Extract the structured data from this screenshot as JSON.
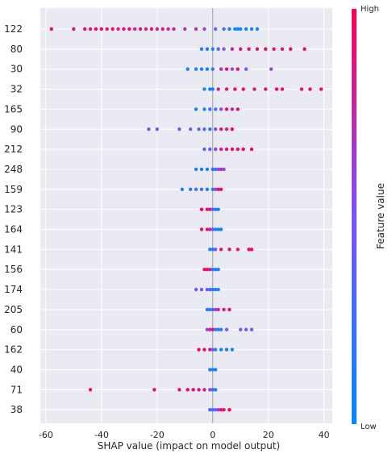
{
  "chart_data": {
    "type": "scatter",
    "subtype": "shap-beeswarm",
    "title": "",
    "xlabel": "SHAP value (impact on model output)",
    "xlim": [
      -62,
      43
    ],
    "xticks": [
      -60,
      -40,
      -20,
      0,
      20,
      40
    ],
    "grid": true,
    "colorbar": {
      "title": "Feature value",
      "high_label": "High",
      "low_label": "Low",
      "low_color": "#008afb",
      "mid_color": "#7c52ff",
      "high_color": "#ff0052"
    },
    "features": [
      {
        "name": "122",
        "points": [
          {
            "x": -58,
            "v": 1
          },
          {
            "x": -50,
            "v": 0.9
          },
          {
            "x": -46,
            "v": 0.95
          },
          {
            "x": -44,
            "v": 0.9
          },
          {
            "x": -42,
            "v": 1
          },
          {
            "x": -40,
            "v": 0.95
          },
          {
            "x": -38,
            "v": 0.9
          },
          {
            "x": -36,
            "v": 1
          },
          {
            "x": -34,
            "v": 0.85
          },
          {
            "x": -32,
            "v": 0.9
          },
          {
            "x": -30,
            "v": 0.95
          },
          {
            "x": -28,
            "v": 0.8
          },
          {
            "x": -26,
            "v": 0.9
          },
          {
            "x": -24,
            "v": 0.85
          },
          {
            "x": -22,
            "v": 0.9
          },
          {
            "x": -20,
            "v": 0.8
          },
          {
            "x": -18,
            "v": 0.9
          },
          {
            "x": -16,
            "v": 0.8
          },
          {
            "x": -14,
            "v": 0.85
          },
          {
            "x": -10,
            "v": 0.7
          },
          {
            "x": -6,
            "v": 0.7
          },
          {
            "x": -3,
            "v": 0.6
          },
          {
            "x": 1,
            "v": 0.4
          },
          {
            "x": 4,
            "v": 0.2
          },
          {
            "x": 6,
            "v": 0.1
          },
          {
            "x": 8,
            "v": 0.05
          },
          {
            "x": 9,
            "v": 0.0
          },
          {
            "x": 10,
            "v": 0.1
          },
          {
            "x": 12,
            "v": 0.05
          },
          {
            "x": 14,
            "v": 0.1
          },
          {
            "x": 16,
            "v": 0.0
          }
        ]
      },
      {
        "name": "80",
        "points": [
          {
            "x": -4,
            "v": 0.1
          },
          {
            "x": -2,
            "v": 0.05
          },
          {
            "x": 0,
            "v": 0.1
          },
          {
            "x": 2,
            "v": 0.2
          },
          {
            "x": 4,
            "v": 0.5
          },
          {
            "x": 7,
            "v": 0.8
          },
          {
            "x": 10,
            "v": 0.9
          },
          {
            "x": 13,
            "v": 0.95
          },
          {
            "x": 16,
            "v": 0.9
          },
          {
            "x": 19,
            "v": 1
          },
          {
            "x": 22,
            "v": 0.95
          },
          {
            "x": 25,
            "v": 0.9
          },
          {
            "x": 28,
            "v": 1
          },
          {
            "x": 33,
            "v": 0.95
          }
        ]
      },
      {
        "name": "30",
        "points": [
          {
            "x": -9,
            "v": 0.1
          },
          {
            "x": -6,
            "v": 0.05
          },
          {
            "x": -4,
            "v": 0.1
          },
          {
            "x": -2,
            "v": 0.0
          },
          {
            "x": 0,
            "v": 0.2
          },
          {
            "x": 3,
            "v": 0.7
          },
          {
            "x": 5,
            "v": 0.9
          },
          {
            "x": 7,
            "v": 0.6
          },
          {
            "x": 9,
            "v": 0.95
          },
          {
            "x": 12,
            "v": 0.5
          },
          {
            "x": 21,
            "v": 0.6
          }
        ]
      },
      {
        "name": "32",
        "points": [
          {
            "x": -3,
            "v": 0.1
          },
          {
            "x": -1,
            "v": 0.05
          },
          {
            "x": 0,
            "v": 0.1
          },
          {
            "x": 2,
            "v": 0.8
          },
          {
            "x": 5,
            "v": 0.9
          },
          {
            "x": 8,
            "v": 1
          },
          {
            "x": 11,
            "v": 0.95
          },
          {
            "x": 15,
            "v": 0.9
          },
          {
            "x": 19,
            "v": 0.9
          },
          {
            "x": 23,
            "v": 1
          },
          {
            "x": 25,
            "v": 0.95
          },
          {
            "x": 32,
            "v": 0.9
          },
          {
            "x": 35,
            "v": 1
          },
          {
            "x": 39,
            "v": 0.95
          }
        ]
      },
      {
        "name": "165",
        "points": [
          {
            "x": -6,
            "v": 0.1
          },
          {
            "x": -3,
            "v": 0.05
          },
          {
            "x": -1,
            "v": 0.1
          },
          {
            "x": 1,
            "v": 0.2
          },
          {
            "x": 3,
            "v": 0.6
          },
          {
            "x": 5,
            "v": 0.9
          },
          {
            "x": 7,
            "v": 0.8
          },
          {
            "x": 9,
            "v": 0.95
          }
        ]
      },
      {
        "name": "90",
        "points": [
          {
            "x": -23,
            "v": 0.55
          },
          {
            "x": -20,
            "v": 0.5
          },
          {
            "x": -12,
            "v": 0.5
          },
          {
            "x": -8,
            "v": 0.45
          },
          {
            "x": -5,
            "v": 0.4
          },
          {
            "x": -3,
            "v": 0.3
          },
          {
            "x": -1,
            "v": 0.05
          },
          {
            "x": 1,
            "v": 0.6
          },
          {
            "x": 3,
            "v": 0.9
          },
          {
            "x": 5,
            "v": 0.85
          },
          {
            "x": 7,
            "v": 1
          }
        ]
      },
      {
        "name": "212",
        "points": [
          {
            "x": -3,
            "v": 0.4
          },
          {
            "x": -1,
            "v": 0.3
          },
          {
            "x": 1,
            "v": 0.6
          },
          {
            "x": 3,
            "v": 0.8
          },
          {
            "x": 5,
            "v": 0.9
          },
          {
            "x": 7,
            "v": 0.95
          },
          {
            "x": 9,
            "v": 0.9
          },
          {
            "x": 11,
            "v": 1
          },
          {
            "x": 14,
            "v": 0.95
          }
        ]
      },
      {
        "name": "248",
        "points": [
          {
            "x": -6,
            "v": 0.1
          },
          {
            "x": -4,
            "v": 0.05
          },
          {
            "x": -2,
            "v": 0.1
          },
          {
            "x": 0,
            "v": 0.05
          },
          {
            "x": 1,
            "v": 0.3
          },
          {
            "x": 2,
            "v": 0.6
          },
          {
            "x": 3,
            "v": 0.7
          },
          {
            "x": 4,
            "v": 0.6
          }
        ]
      },
      {
        "name": "159",
        "points": [
          {
            "x": -11,
            "v": 0.15
          },
          {
            "x": -8,
            "v": 0.2
          },
          {
            "x": -6,
            "v": 0.3
          },
          {
            "x": -4,
            "v": 0.25
          },
          {
            "x": -2,
            "v": 0.15
          },
          {
            "x": 0,
            "v": 0.1
          },
          {
            "x": 1,
            "v": 0.6
          },
          {
            "x": 2,
            "v": 0.9
          },
          {
            "x": 3,
            "v": 0.95
          }
        ]
      },
      {
        "name": "123",
        "points": [
          {
            "x": -4,
            "v": 1
          },
          {
            "x": -2,
            "v": 0.95
          },
          {
            "x": -1,
            "v": 0.9
          },
          {
            "x": 0,
            "v": 0.3
          },
          {
            "x": 1,
            "v": 0.1
          },
          {
            "x": 2,
            "v": 0.05
          }
        ]
      },
      {
        "name": "164",
        "points": [
          {
            "x": -4,
            "v": 0.9
          },
          {
            "x": -2,
            "v": 0.95
          },
          {
            "x": -1,
            "v": 0.85
          },
          {
            "x": 0,
            "v": 0.3
          },
          {
            "x": 1,
            "v": 0.1
          },
          {
            "x": 2,
            "v": 0.05
          },
          {
            "x": 3,
            "v": 0.1
          }
        ]
      },
      {
        "name": "141",
        "points": [
          {
            "x": -1,
            "v": 0.1
          },
          {
            "x": 0,
            "v": 0.05
          },
          {
            "x": 1,
            "v": 0.5
          },
          {
            "x": 3,
            "v": 0.9
          },
          {
            "x": 6,
            "v": 0.95
          },
          {
            "x": 9,
            "v": 0.9
          },
          {
            "x": 13,
            "v": 1
          },
          {
            "x": 14,
            "v": 0.95
          }
        ]
      },
      {
        "name": "156",
        "points": [
          {
            "x": -3,
            "v": 0.9
          },
          {
            "x": -2,
            "v": 0.95
          },
          {
            "x": -1,
            "v": 0.85
          },
          {
            "x": 0,
            "v": 0.2
          },
          {
            "x": 1,
            "v": 0.1
          },
          {
            "x": 2,
            "v": 0.05
          }
        ]
      },
      {
        "name": "174",
        "points": [
          {
            "x": -6,
            "v": 0.5
          },
          {
            "x": -4,
            "v": 0.45
          },
          {
            "x": -2,
            "v": 0.4
          },
          {
            "x": -1,
            "v": 0.3
          },
          {
            "x": 0,
            "v": 0.15
          },
          {
            "x": 1,
            "v": 0.05
          },
          {
            "x": 2,
            "v": 0.1
          }
        ]
      },
      {
        "name": "205",
        "points": [
          {
            "x": -2,
            "v": 0.2
          },
          {
            "x": -1,
            "v": 0.1
          },
          {
            "x": 0,
            "v": 0.3
          },
          {
            "x": 1,
            "v": 0.6
          },
          {
            "x": 2,
            "v": 0.8
          },
          {
            "x": 4,
            "v": 0.9
          },
          {
            "x": 6,
            "v": 0.95
          }
        ]
      },
      {
        "name": "60",
        "points": [
          {
            "x": -2,
            "v": 0.6
          },
          {
            "x": -1,
            "v": 0.8
          },
          {
            "x": 0,
            "v": 0.9
          },
          {
            "x": 1,
            "v": 0.2
          },
          {
            "x": 2,
            "v": 0.1
          },
          {
            "x": 3,
            "v": 0.15
          },
          {
            "x": 5,
            "v": 0.4
          },
          {
            "x": 10,
            "v": 0.5
          },
          {
            "x": 12,
            "v": 0.45
          },
          {
            "x": 14,
            "v": 0.4
          }
        ]
      },
      {
        "name": "162",
        "points": [
          {
            "x": -5,
            "v": 1
          },
          {
            "x": -3,
            "v": 0.95
          },
          {
            "x": -1,
            "v": 0.9
          },
          {
            "x": 0,
            "v": 0.5
          },
          {
            "x": 1,
            "v": 0.1
          },
          {
            "x": 3,
            "v": 0.05
          },
          {
            "x": 5,
            "v": 0.1
          },
          {
            "x": 7,
            "v": 0.05
          }
        ]
      },
      {
        "name": "40",
        "points": [
          {
            "x": -1,
            "v": 0.2
          },
          {
            "x": 0,
            "v": 0.1
          },
          {
            "x": 1,
            "v": 0.05
          }
        ]
      },
      {
        "name": "71",
        "points": [
          {
            "x": -44,
            "v": 1
          },
          {
            "x": -21,
            "v": 0.95
          },
          {
            "x": -12,
            "v": 0.9
          },
          {
            "x": -9,
            "v": 1
          },
          {
            "x": -7,
            "v": 0.95
          },
          {
            "x": -5,
            "v": 0.9
          },
          {
            "x": -3,
            "v": 0.85
          },
          {
            "x": -1,
            "v": 0.6
          },
          {
            "x": 0,
            "v": 0.3
          },
          {
            "x": 1,
            "v": 0.1
          }
        ]
      },
      {
        "name": "38",
        "points": [
          {
            "x": -1,
            "v": 0.3
          },
          {
            "x": 0,
            "v": 0.2
          },
          {
            "x": 1,
            "v": 0.5
          },
          {
            "x": 2,
            "v": 0.7
          },
          {
            "x": 3,
            "v": 0.9
          },
          {
            "x": 4,
            "v": 0.95
          },
          {
            "x": 6,
            "v": 1
          }
        ]
      }
    ]
  }
}
